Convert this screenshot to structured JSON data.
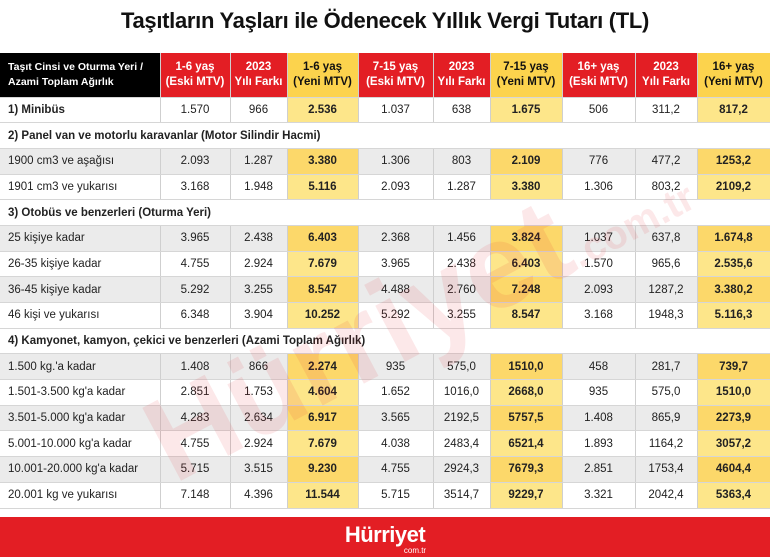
{
  "title": "Taşıtların Yaşları ile Ödenecek Yıllık Vergi Tutarı (TL)",
  "headers": [
    "Taşıt Cinsi ve Oturma Yeri / Azami Toplam Ağırlık",
    "1-6 yaş (Eski MTV)",
    "2023 Yılı Farkı",
    "1-6 yaş (Yeni MTV)",
    "7-15 yaş (Eski MTV)",
    "2023 Yılı Farkı",
    "7-15 yaş (Yeni MTV)",
    "16+ yaş (Eski MTV)",
    "2023 Yılı Farkı",
    "16+ yaş (Yeni MTV)"
  ],
  "header_lines": [
    [
      "Taşıt Cinsi ve Oturma Yeri /",
      "Azami Toplam Ağırlık"
    ],
    [
      "1-6 yaş",
      "(Eski MTV)"
    ],
    [
      "2023",
      "Yılı Farkı"
    ],
    [
      "1-6 yaş",
      "(Yeni MTV)"
    ],
    [
      "7-15 yaş",
      "(Eski MTV)"
    ],
    [
      "2023",
      "Yılı Farkı"
    ],
    [
      "7-15 yaş",
      "(Yeni MTV)"
    ],
    [
      "16+ yaş",
      "(Eski MTV)"
    ],
    [
      "2023",
      "Yılı Farkı"
    ],
    [
      "16+ yaş",
      "(Yeni MTV)"
    ]
  ],
  "rows": [
    {
      "type": "data",
      "cells": [
        "1) Minibüs",
        "1.570",
        "966",
        "2.536",
        "1.037",
        "638",
        "1.675",
        "506",
        "311,2",
        "817,2"
      ]
    },
    {
      "type": "section",
      "label": "2) Panel van ve motorlu karavanlar (Motor Silindir Hacmi)"
    },
    {
      "type": "data",
      "cells": [
        "1900 cm3 ve aşağısı",
        "2.093",
        "1.287",
        "3.380",
        "1.306",
        "803",
        "2.109",
        "776",
        "477,2",
        "1253,2"
      ]
    },
    {
      "type": "data",
      "cells": [
        "1901 cm3 ve yukarısı",
        "3.168",
        "1.948",
        "5.116",
        "2.093",
        "1.287",
        "3.380",
        "1.306",
        "803,2",
        "2109,2"
      ]
    },
    {
      "type": "section",
      "label": "3) Otobüs ve benzerleri (Oturma Yeri)"
    },
    {
      "type": "data",
      "cells": [
        "25 kişiye kadar",
        "3.965",
        "2.438",
        "6.403",
        "2.368",
        "1.456",
        "3.824",
        "1.037",
        "637,8",
        "1.674,8"
      ]
    },
    {
      "type": "data",
      "cells": [
        "26-35 kişiye kadar",
        "4.755",
        "2.924",
        "7.679",
        "3.965",
        "2.438",
        "6.403",
        "1.570",
        "965,6",
        "2.535,6"
      ]
    },
    {
      "type": "data",
      "cells": [
        "36-45 kişiye kadar",
        "5.292",
        "3.255",
        "8.547",
        "4.488",
        "2.760",
        "7.248",
        "2.093",
        "1287,2",
        "3.380,2"
      ]
    },
    {
      "type": "data",
      "cells": [
        "46 kişi ve yukarısı",
        "6.348",
        "3.904",
        "10.252",
        "5.292",
        "3.255",
        "8.547",
        "3.168",
        "1948,3",
        "5.116,3"
      ]
    },
    {
      "type": "section",
      "label": "4) Kamyonet, kamyon, çekici ve benzerleri (Azami Toplam Ağırlık)"
    },
    {
      "type": "data",
      "cells": [
        "1.500 kg.'a kadar",
        "1.408",
        "866",
        "2.274",
        "935",
        "575,0",
        "1510,0",
        "458",
        "281,7",
        "739,7"
      ]
    },
    {
      "type": "data",
      "cells": [
        "1.501-3.500 kg'a kadar",
        "2.851",
        "1.753",
        "4.604",
        "1.652",
        "1016,0",
        "2668,0",
        "935",
        "575,0",
        "1510,0"
      ]
    },
    {
      "type": "data",
      "cells": [
        "3.501-5.000 kg'a kadar",
        "4.283",
        "2.634",
        "6.917",
        "3.565",
        "2192,5",
        "5757,5",
        "1.408",
        "865,9",
        "2273,9"
      ]
    },
    {
      "type": "data",
      "cells": [
        "5.001-10.000 kg'a kadar",
        "4.755",
        "2.924",
        "7.679",
        "4.038",
        "2483,4",
        "6521,4",
        "1.893",
        "1164,2",
        "3057,2"
      ]
    },
    {
      "type": "data",
      "cells": [
        "10.001-20.000 kg'a kadar",
        "5.715",
        "3.515",
        "9.230",
        "4.755",
        "2924,3",
        "7679,3",
        "2.851",
        "1753,4",
        "4604,4"
      ]
    },
    {
      "type": "data",
      "cells": [
        "20.001 kg ve yukarısı",
        "7.148",
        "4.396",
        "11.544",
        "5.715",
        "3514,7",
        "9229,7",
        "3.321",
        "2042,4",
        "5363,4"
      ]
    }
  ],
  "watermark": {
    "text": "Hürriyet",
    "sub": ".com.tr"
  },
  "footer": {
    "logo": "Hürriyet",
    "sub": "com.tr"
  },
  "colors": {
    "red": "#e31e24",
    "yellow": "#fcd34d",
    "black": "#000000"
  }
}
